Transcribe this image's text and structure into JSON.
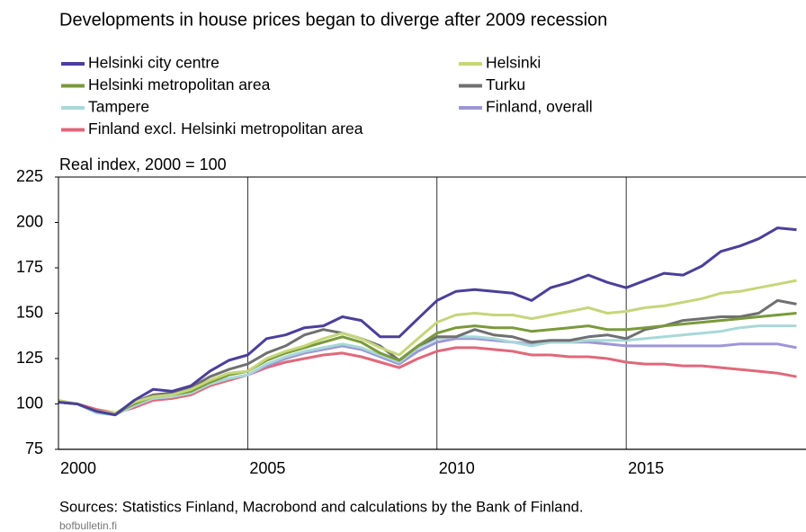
{
  "chart_data": {
    "type": "line",
    "title": "Developments in house prices began to diverge after 2009 recession",
    "subtitle": "Real index, 2000 = 100",
    "source": "Sources: Statistics Finland, Macrobond and calculations by the Bank of Finland.",
    "footer": "bofbulletin.fi",
    "x": [
      2000,
      2000.5,
      2001,
      2001.5,
      2002,
      2002.5,
      2003,
      2003.5,
      2004,
      2004.5,
      2005,
      2005.5,
      2006,
      2006.5,
      2007,
      2007.5,
      2008,
      2008.5,
      2009,
      2009.5,
      2010,
      2010.5,
      2011,
      2011.5,
      2012,
      2012.5,
      2013,
      2013.5,
      2014,
      2014.5,
      2015,
      2015.5,
      2016,
      2016.5,
      2017,
      2017.5,
      2018,
      2018.5,
      2019,
      2019.5
    ],
    "xlim": [
      2000,
      2019.75
    ],
    "xticks": [
      2000,
      2005,
      2010,
      2015
    ],
    "ylim": [
      75,
      225
    ],
    "yticks": [
      75,
      100,
      125,
      150,
      175,
      200,
      225
    ],
    "series": [
      {
        "name": "Helsinki city centre",
        "color": "#4b3f9a",
        "values": [
          101,
          100,
          96,
          94,
          102,
          108,
          107,
          110,
          118,
          124,
          127,
          136,
          138,
          142,
          143,
          148,
          146,
          137,
          137,
          147,
          157,
          162,
          163,
          162,
          161,
          157,
          164,
          167,
          171,
          167,
          164,
          168,
          172,
          171,
          176,
          184,
          187,
          191,
          197,
          196
        ]
      },
      {
        "name": "Helsinki",
        "color": "#c5d67a",
        "values": [
          102,
          100,
          96,
          95,
          101,
          104,
          105,
          108,
          113,
          117,
          118,
          125,
          129,
          132,
          136,
          139,
          136,
          131,
          127,
          136,
          145,
          149,
          150,
          149,
          149,
          147,
          149,
          151,
          153,
          150,
          151,
          153,
          154,
          156,
          158,
          161,
          162,
          164,
          166,
          168
        ]
      },
      {
        "name": "Helsinki metropolitan area",
        "color": "#7a9a3a",
        "values": [
          101,
          100,
          96,
          95,
          100,
          104,
          105,
          107,
          112,
          116,
          118,
          124,
          128,
          131,
          134,
          137,
          134,
          128,
          124,
          132,
          139,
          142,
          143,
          142,
          142,
          140,
          141,
          142,
          143,
          141,
          141,
          142,
          143,
          144,
          145,
          146,
          147,
          148,
          149,
          150
        ]
      },
      {
        "name": "Turku",
        "color": "#707070",
        "values": [
          101,
          100,
          96,
          94,
          101,
          105,
          106,
          109,
          115,
          119,
          122,
          128,
          132,
          138,
          141,
          139,
          136,
          132,
          124,
          132,
          137,
          137,
          141,
          138,
          137,
          134,
          135,
          135,
          137,
          138,
          136,
          141,
          143,
          146,
          147,
          148,
          148,
          150,
          157,
          155
        ]
      },
      {
        "name": "Tampere",
        "color": "#a8d8d8",
        "values": [
          101,
          100,
          95,
          94,
          99,
          103,
          104,
          106,
          111,
          114,
          116,
          122,
          126,
          129,
          131,
          133,
          131,
          127,
          123,
          131,
          136,
          137,
          137,
          136,
          134,
          132,
          134,
          134,
          135,
          135,
          135,
          136,
          137,
          138,
          139,
          140,
          142,
          143,
          143,
          143
        ]
      },
      {
        "name": "Finland, overall",
        "color": "#9d96d6",
        "values": [
          101,
          100,
          96,
          95,
          99,
          103,
          104,
          106,
          111,
          114,
          116,
          121,
          125,
          128,
          130,
          132,
          130,
          126,
          122,
          129,
          134,
          136,
          136,
          135,
          134,
          133,
          134,
          134,
          134,
          133,
          132,
          132,
          132,
          132,
          132,
          132,
          133,
          133,
          133,
          131
        ]
      },
      {
        "name": "Finland excl. Helsinki metropolitan area",
        "color": "#e0687a",
        "values": [
          101,
          100,
          97,
          95,
          98,
          102,
          103,
          105,
          110,
          113,
          116,
          120,
          123,
          125,
          127,
          128,
          126,
          123,
          120,
          125,
          129,
          131,
          131,
          130,
          129,
          127,
          127,
          126,
          126,
          125,
          123,
          122,
          122,
          121,
          121,
          120,
          119,
          118,
          117,
          115
        ]
      }
    ]
  }
}
